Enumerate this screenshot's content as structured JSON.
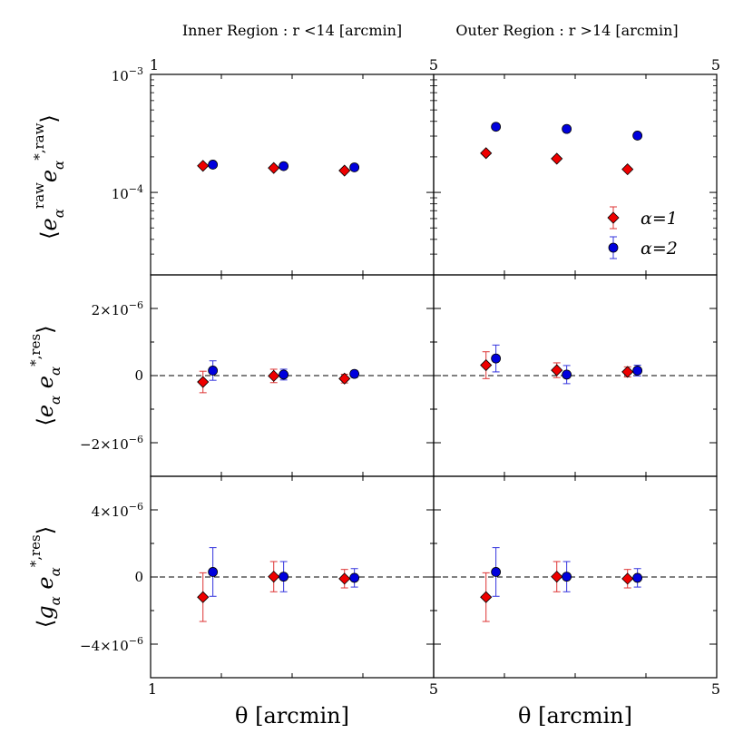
{
  "colors": {
    "alpha1": "#ee0000",
    "alpha2": "#0000dd",
    "edge": "#000000",
    "err1": "#dd3333",
    "err2": "#3333dd"
  },
  "chart_data": [
    {
      "type": "scatter",
      "column_title": "Inner Region : r <14 [arcmin]",
      "ylabel": "⟨e_α^raw e_α^*,raw⟩",
      "yscale": "log",
      "ylim": [
        2e-05,
        0.001
      ],
      "xlim": [
        1,
        5
      ],
      "x_ticks": [
        "1",
        "5"
      ],
      "y_ticks": [
        "10^-3",
        "10^-4"
      ],
      "series": [
        {
          "name": "α=1",
          "x": [
            1.74,
            2.74,
            3.74
          ],
          "y": [
            0.000168,
            0.000161,
            0.000153
          ],
          "err": [
            8e-07,
            8e-07,
            8e-07
          ]
        },
        {
          "name": "α=2",
          "x": [
            1.88,
            2.88,
            3.88
          ],
          "y": [
            0.000172,
            0.000167,
            0.000163
          ],
          "err": [
            8e-07,
            8e-07,
            8e-07
          ]
        }
      ]
    },
    {
      "type": "scatter",
      "column_title": "Outer Region : r >14 [arcmin]",
      "yscale": "log",
      "ylim": [
        2e-05,
        0.001
      ],
      "xlim": [
        1,
        5
      ],
      "x_ticks": [
        "5"
      ],
      "series": [
        {
          "name": "α=1",
          "x": [
            1.74,
            2.74,
            3.74
          ],
          "y": [
            0.000215,
            0.000193,
            0.000157
          ],
          "err": [
            8e-07,
            8e-07,
            8e-07
          ]
        },
        {
          "name": "α=2",
          "x": [
            1.88,
            2.88,
            3.88
          ],
          "y": [
            0.00036,
            0.000345,
            0.000303
          ],
          "err": [
            8e-07,
            8e-07,
            8e-07
          ]
        }
      ],
      "legend": {
        "location": "lower-right",
        "entries": [
          "α=1",
          "α=2"
        ]
      }
    },
    {
      "type": "scatter",
      "ylabel": "⟨e_α e_α^*,res⟩",
      "ylim": [
        -3e-06,
        3e-06
      ],
      "xlim": [
        1,
        5
      ],
      "y_ticks": [
        "2×10^-6",
        "0",
        "-2×10^-6"
      ],
      "hline": 0,
      "series": [
        {
          "name": "α=1",
          "x": [
            1.74,
            2.74,
            3.74
          ],
          "y": [
            -1.9e-07,
            -1e-08,
            -9e-08
          ],
          "err": [
            3.2e-07,
            2e-07,
            1.3e-07
          ]
        },
        {
          "name": "α=2",
          "x": [
            1.88,
            2.88,
            3.88
          ],
          "y": [
            1.5e-07,
            3e-08,
            5e-08
          ],
          "err": [
            2.9e-07,
            1.6e-07,
            1e-07
          ]
        }
      ]
    },
    {
      "type": "scatter",
      "ylim": [
        -3e-06,
        3e-06
      ],
      "xlim": [
        1,
        5
      ],
      "hline": 0,
      "series": [
        {
          "name": "α=1",
          "x": [
            1.74,
            2.74,
            3.74
          ],
          "y": [
            3.1e-07,
            1.6e-07,
            1.1e-07
          ],
          "err": [
            4e-07,
            2.2e-07,
            1.5e-07
          ]
        },
        {
          "name": "α=2",
          "x": [
            1.88,
            2.88,
            3.88
          ],
          "y": [
            5.1e-07,
            3e-08,
            1.5e-07
          ],
          "err": [
            4e-07,
            2.7e-07,
            1.6e-07
          ]
        }
      ]
    },
    {
      "type": "scatter",
      "ylabel": "⟨g_α e_α^*,res⟩",
      "ylim": [
        -6e-06,
        6e-06
      ],
      "xlim": [
        1,
        5
      ],
      "y_ticks": [
        "4×10^-6",
        "0",
        "-4×10^-6"
      ],
      "x_ticks": [
        "1",
        "5"
      ],
      "xlabel": "θ [arcmin]",
      "hline": 0,
      "series": [
        {
          "name": "α=1",
          "x": [
            1.74,
            2.74,
            3.74
          ],
          "y": [
            -1.2e-06,
            2e-08,
            -1e-07
          ],
          "err": [
            1.45e-06,
            9e-07,
            5.5e-07
          ]
        },
        {
          "name": "α=2",
          "x": [
            1.88,
            2.88,
            3.88
          ],
          "y": [
            3e-07,
            2e-08,
            -5e-08
          ],
          "err": [
            1.45e-06,
            9e-07,
            5.5e-07
          ]
        }
      ]
    },
    {
      "type": "scatter",
      "ylim": [
        -6e-06,
        6e-06
      ],
      "xlim": [
        1,
        5
      ],
      "x_ticks": [
        "5"
      ],
      "xlabel": "θ [arcmin]",
      "hline": 0,
      "series": [
        {
          "name": "α=1",
          "x": [
            1.74,
            2.74,
            3.74
          ],
          "y": [
            -1.2e-06,
            2e-08,
            -1e-07
          ],
          "err": [
            1.45e-06,
            9e-07,
            5.5e-07
          ]
        },
        {
          "name": "α=2",
          "x": [
            1.88,
            2.88,
            3.88
          ],
          "y": [
            3e-07,
            2e-08,
            -5e-08
          ],
          "err": [
            1.45e-06,
            9e-07,
            5.5e-07
          ]
        }
      ]
    }
  ]
}
